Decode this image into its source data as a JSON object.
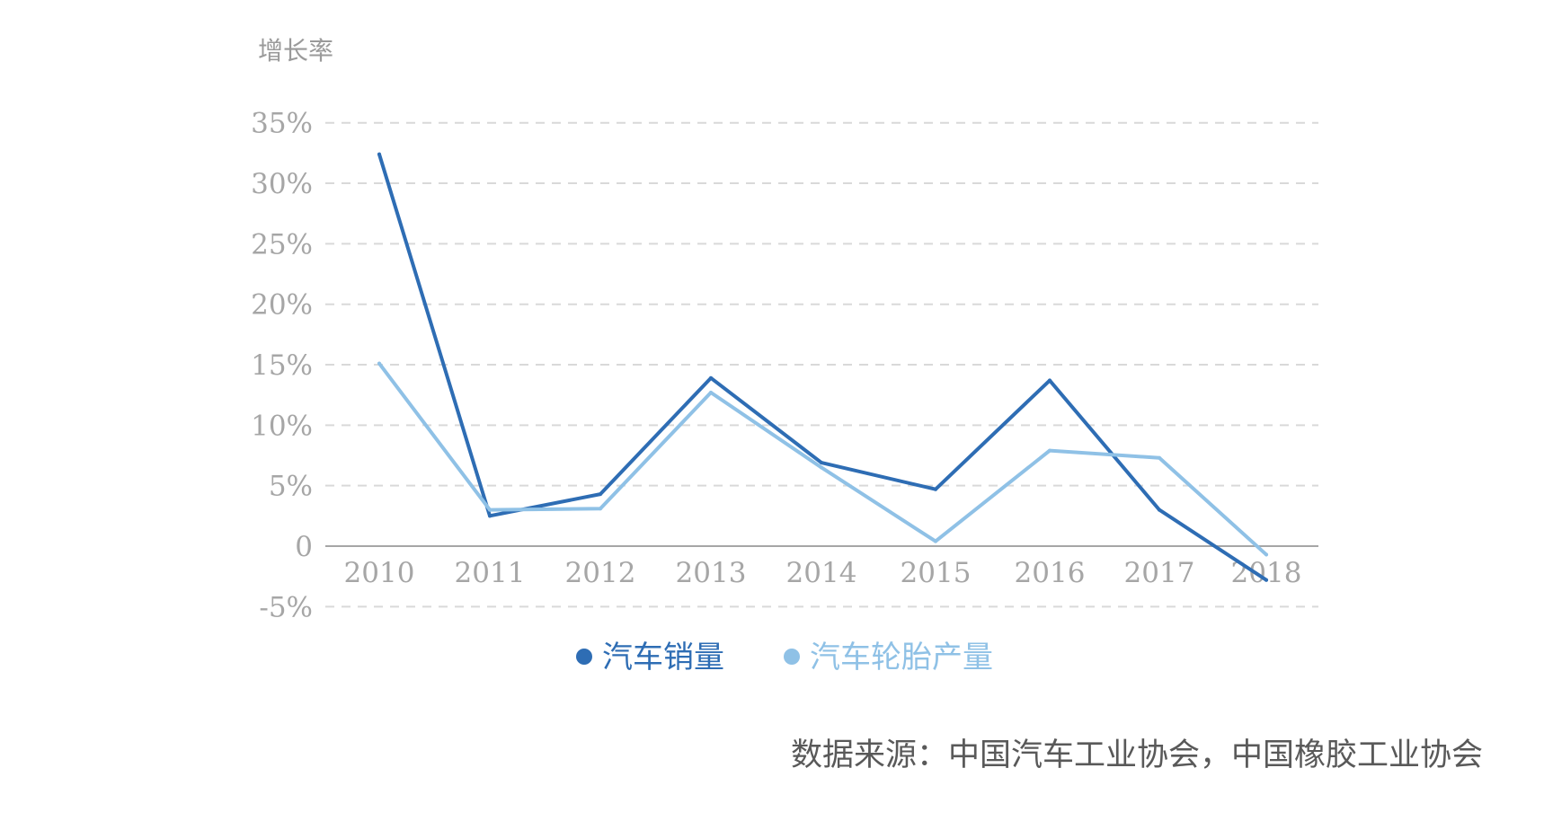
{
  "chart_data": {
    "type": "line",
    "ylabel": "增长率",
    "categories": [
      "2010",
      "2011",
      "2012",
      "2013",
      "2014",
      "2015",
      "2016",
      "2017",
      "2018"
    ],
    "y_ticks": [
      {
        "value": 35,
        "label": "35%"
      },
      {
        "value": 30,
        "label": "30%"
      },
      {
        "value": 25,
        "label": "25%"
      },
      {
        "value": 20,
        "label": "20%"
      },
      {
        "value": 15,
        "label": "15%"
      },
      {
        "value": 10,
        "label": "10%"
      },
      {
        "value": 5,
        "label": "5%"
      },
      {
        "value": 0,
        "label": "0"
      },
      {
        "value": -5,
        "label": "-5%"
      }
    ],
    "ylim": [
      -5,
      35
    ],
    "grid": true,
    "legend_position": "bottom",
    "series": [
      {
        "name": "汽车销量",
        "color": "#2e6db4",
        "values": [
          32.4,
          2.5,
          4.3,
          13.9,
          6.9,
          4.7,
          13.7,
          3.0,
          -2.8
        ]
      },
      {
        "name": "汽车轮胎产量",
        "color": "#8fc1e6",
        "values": [
          15.1,
          3.0,
          3.1,
          12.7,
          6.5,
          0.4,
          7.9,
          7.3,
          -0.7
        ]
      }
    ]
  },
  "source": "数据来源：中国汽车工业协会，中国橡胶工业协会"
}
